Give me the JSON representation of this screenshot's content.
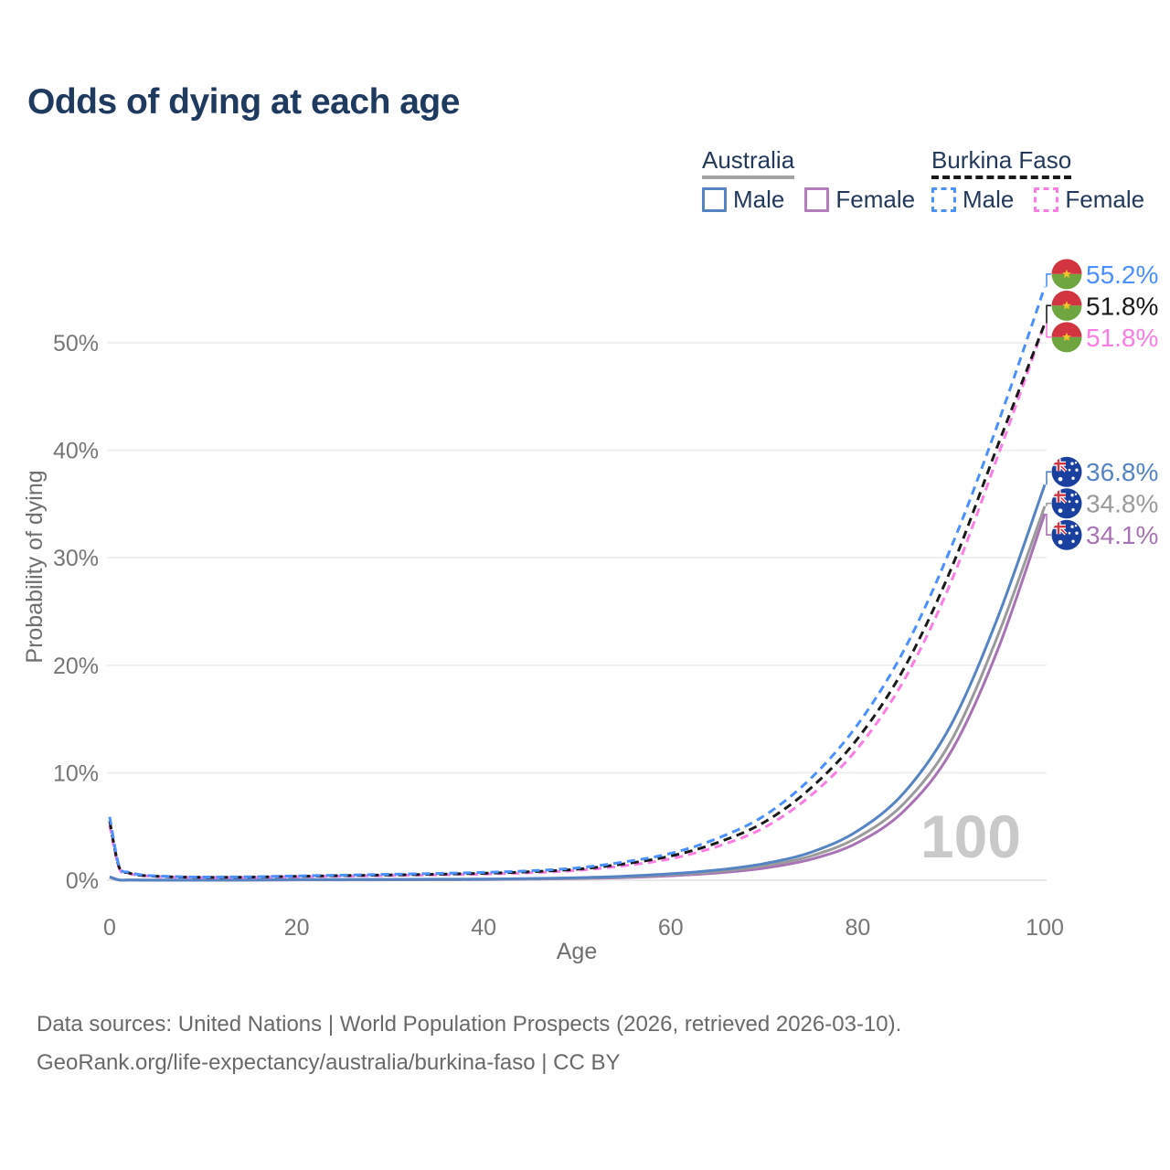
{
  "title": "Odds of dying at each age",
  "legend": {
    "australia": {
      "label": "Australia",
      "male_label": "Male",
      "female_label": "Female",
      "male_color": "#5584c4",
      "female_color": "#b37cba",
      "underline_color": "#a3a3a3",
      "line_style": "solid"
    },
    "burkina_faso": {
      "label": "Burkina Faso",
      "male_label": "Male",
      "female_label": "Female",
      "male_color": "#4a90fe",
      "female_color": "#fb7de4",
      "underline_color": "#1a1a1a",
      "line_style": "dashed"
    }
  },
  "chart_data": {
    "type": "line",
    "xlabel": "Age",
    "ylabel": "Probability of dying",
    "xlim": [
      0,
      100
    ],
    "ylim": [
      0,
      57
    ],
    "x_ticks": [
      0,
      20,
      40,
      60,
      80,
      100
    ],
    "y_ticks": [
      0,
      10,
      20,
      30,
      40,
      50
    ],
    "y_tick_suffix": "%",
    "grid": true,
    "legend_position": "top-right",
    "watermark": "100",
    "x": [
      0,
      1,
      2,
      3,
      4,
      5,
      7,
      10,
      15,
      20,
      25,
      30,
      35,
      40,
      45,
      50,
      55,
      60,
      65,
      70,
      75,
      80,
      85,
      90,
      95,
      100
    ],
    "series": [
      {
        "name": "Australia Female",
        "country": "Australia",
        "sex": "Female",
        "color": "#a873b4",
        "dash": false,
        "flag": "au",
        "end_label": "34.1%",
        "values": [
          0.27,
          0.02,
          0.015,
          0.01,
          0.01,
          0.008,
          0.008,
          0.008,
          0.018,
          0.03,
          0.035,
          0.04,
          0.05,
          0.07,
          0.1,
          0.16,
          0.25,
          0.42,
          0.68,
          1.12,
          1.95,
          3.5,
          6.5,
          12.0,
          21.5,
          34.1
        ]
      },
      {
        "name": "Australia Both sexes",
        "country": "Australia",
        "sex": "Both",
        "color": "#9a9a9a",
        "dash": false,
        "flag": "au",
        "end_label": "34.8%",
        "values": [
          0.3,
          0.025,
          0.02,
          0.015,
          0.01,
          0.01,
          0.01,
          0.01,
          0.02,
          0.04,
          0.05,
          0.06,
          0.07,
          0.09,
          0.13,
          0.2,
          0.31,
          0.52,
          0.82,
          1.35,
          2.25,
          4.0,
          7.2,
          13.0,
          22.8,
          34.8
        ]
      },
      {
        "name": "Australia Male",
        "country": "Australia",
        "sex": "Male",
        "color": "#5584c4",
        "dash": false,
        "flag": "au",
        "end_label": "36.8%",
        "values": [
          0.32,
          0.03,
          0.02,
          0.02,
          0.01,
          0.01,
          0.01,
          0.01,
          0.03,
          0.06,
          0.07,
          0.08,
          0.09,
          0.11,
          0.16,
          0.24,
          0.37,
          0.6,
          0.95,
          1.55,
          2.6,
          4.6,
          8.2,
          14.5,
          24.5,
          36.8
        ]
      },
      {
        "name": "Burkina Faso Female",
        "country": "Burkina Faso",
        "sex": "Female",
        "color": "#fb7de4",
        "dash": true,
        "flag": "bf",
        "end_label": "51.8%",
        "values": [
          5.1,
          1.15,
          0.65,
          0.47,
          0.39,
          0.34,
          0.29,
          0.25,
          0.26,
          0.32,
          0.38,
          0.44,
          0.5,
          0.58,
          0.7,
          0.92,
          1.35,
          2.0,
          3.15,
          4.9,
          7.9,
          12.3,
          18.7,
          27.8,
          39.5,
          51.8
        ]
      },
      {
        "name": "Burkina Faso Both sexes",
        "country": "Burkina Faso",
        "sex": "Both",
        "color": "#1a1a1a",
        "dash": true,
        "flag": "bf",
        "end_label": "51.8%",
        "values": [
          5.5,
          1.25,
          0.7,
          0.5,
          0.42,
          0.37,
          0.31,
          0.27,
          0.29,
          0.36,
          0.43,
          0.49,
          0.56,
          0.65,
          0.79,
          1.03,
          1.52,
          2.25,
          3.5,
          5.4,
          8.6,
          13.2,
          19.8,
          29.0,
          40.5,
          51.8
        ]
      },
      {
        "name": "Burkina Faso Male",
        "country": "Burkina Faso",
        "sex": "Male",
        "color": "#4a90fe",
        "dash": true,
        "flag": "bf",
        "end_label": "55.2%",
        "values": [
          5.9,
          1.35,
          0.75,
          0.55,
          0.45,
          0.4,
          0.34,
          0.3,
          0.32,
          0.4,
          0.48,
          0.55,
          0.63,
          0.73,
          0.88,
          1.15,
          1.7,
          2.5,
          3.9,
          6.0,
          9.5,
          14.5,
          21.5,
          31.0,
          42.5,
          55.2
        ]
      }
    ]
  },
  "flags": {
    "burkina_faso": {
      "red": "#d23440",
      "green": "#6fa53e",
      "star": "#f3c52b"
    },
    "australia": {
      "navy": "#19409e",
      "white": "#ffffff",
      "red": "#d23440"
    }
  },
  "footer": {
    "line1": "Data sources: United Nations | World Population Prospects (2026, retrieved 2026-03-10).",
    "line2": "GeoRank.org/life-expectancy/australia/burkina-faso | CC BY"
  }
}
